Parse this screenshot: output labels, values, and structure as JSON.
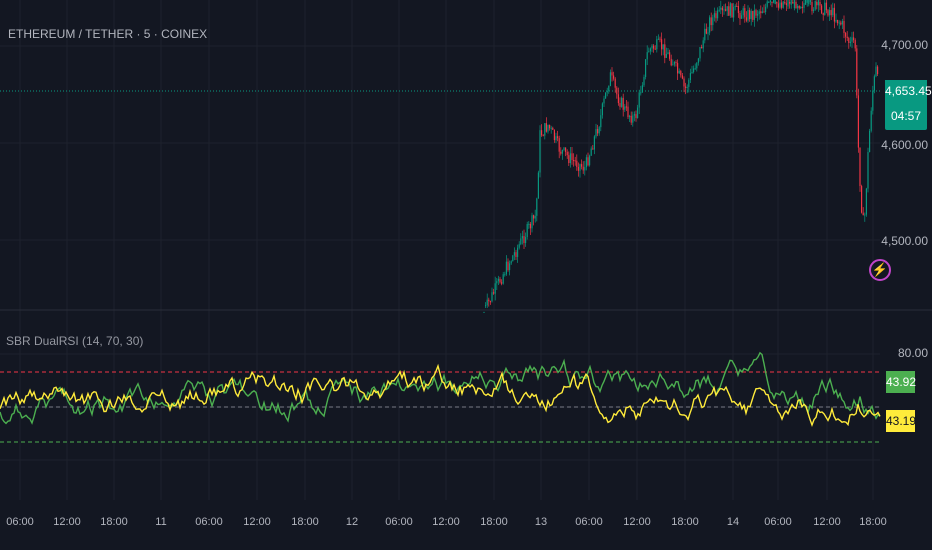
{
  "header": {
    "symbol_title": "ETHEREUM / TETHER · 5 · COINEX"
  },
  "price_axis": {
    "labels": [
      "4,700.00",
      "4,600.00",
      "4,500.00"
    ],
    "values": [
      4700,
      4600,
      4500
    ],
    "current_price": "4,653.45",
    "countdown": "04:57",
    "current_value": 4653.45
  },
  "indicator": {
    "title": "SBR DualRSI (14, 70, 30)",
    "axis_label": "80.00",
    "upper_level": 70,
    "lower_level": 30,
    "green_value": "43.92",
    "yellow_value": "43.19"
  },
  "time_axis": {
    "labels": [
      "06:00",
      "12:00",
      "18:00",
      "11",
      "06:00",
      "12:00",
      "18:00",
      "12",
      "06:00",
      "12:00",
      "18:00",
      "13",
      "06:00",
      "12:00",
      "18:00",
      "14",
      "06:00",
      "12:00",
      "18:00"
    ]
  },
  "colors": {
    "background": "#131722",
    "up_candle": "#089981",
    "down_candle": "#f23645",
    "rsi_green": "#4caf50",
    "rsi_yellow": "#ffeb3b",
    "upper_line": "#f23645",
    "lower_line": "#4caf50",
    "alert_icon": "#c045c8"
  },
  "icons": {
    "alert": "lightning-alert-icon"
  }
}
